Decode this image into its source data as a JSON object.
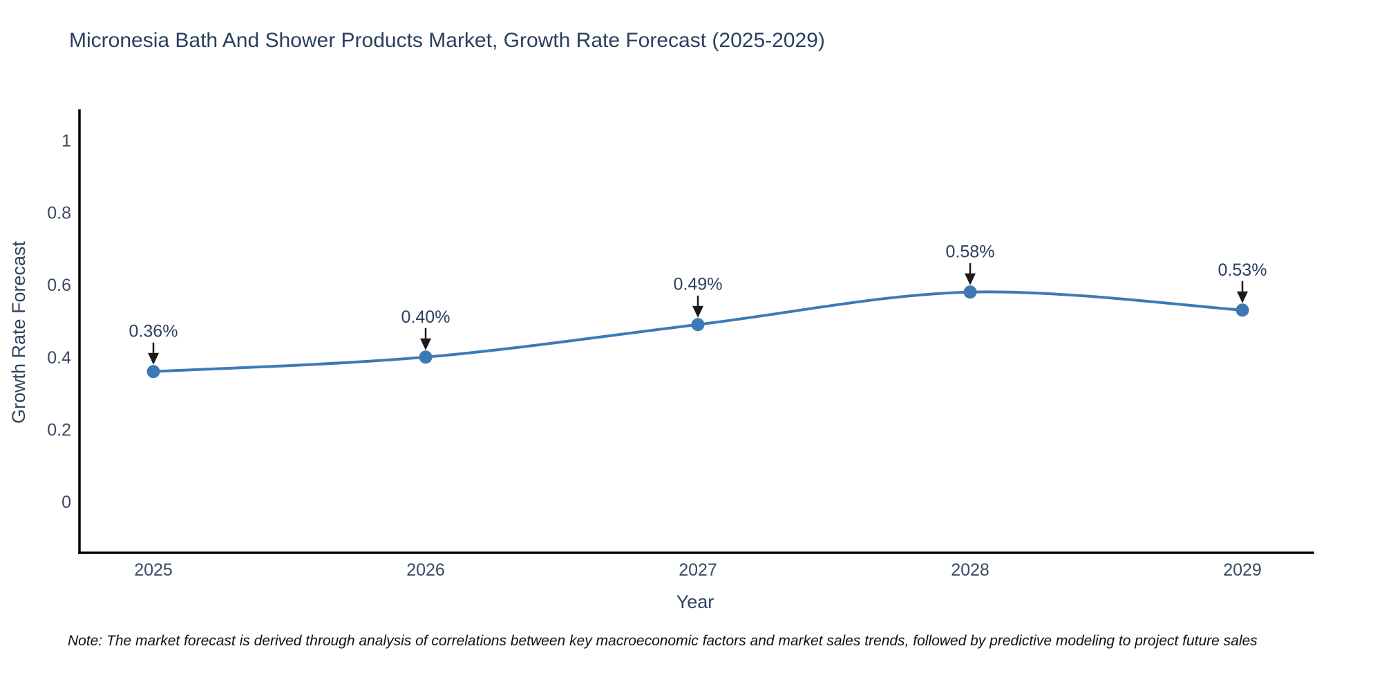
{
  "title": "Micronesia Bath And Shower Products Market, Growth Rate Forecast (2025-2029)",
  "note": "Note: The market forecast is derived through analysis of correlations between key macroeconomic factors and market sales trends, followed by predictive modeling to project future sales",
  "chart_data": {
    "type": "line",
    "line_shape": "spline",
    "categories": [
      "2025",
      "2026",
      "2027",
      "2028",
      "2029"
    ],
    "values": [
      0.36,
      0.4,
      0.49,
      0.58,
      0.53
    ],
    "point_labels": [
      "0.36%",
      "0.40%",
      "0.49%",
      "0.58%",
      "0.53%"
    ],
    "title": "Micronesia Bath And Shower Products Market, Growth Rate Forecast (2025-2029)",
    "xlabel": "Year",
    "ylabel": "Growth Rate Forecast",
    "yticks": [
      0,
      0.2,
      0.4,
      0.6,
      0.8,
      1
    ],
    "ytick_labels": [
      "0",
      "0.2",
      "0.4",
      "0.6",
      "0.8",
      "1"
    ],
    "ylim": [
      -0.14,
      1.08
    ],
    "grid": false,
    "legend": "none",
    "colors": {
      "line": "#3d7ab5",
      "marker": "#3d7ab5",
      "axis_line": "#000000",
      "arrow": "#1a1a1a",
      "tick_label": "#3b4a63",
      "title": "#2a3f5f",
      "background": "#ffffff"
    }
  }
}
